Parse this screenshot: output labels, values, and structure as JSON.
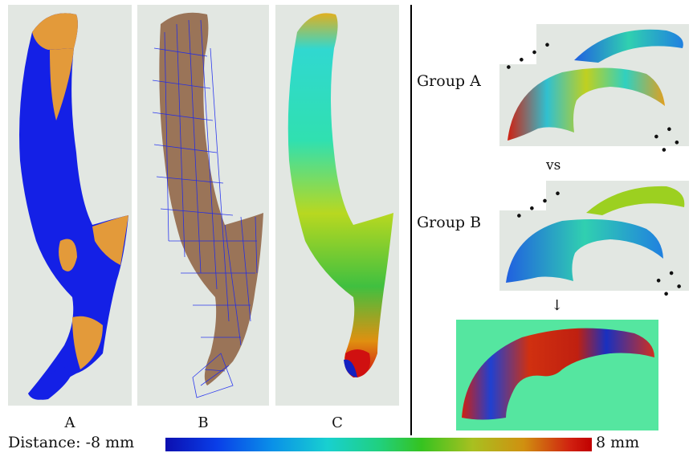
{
  "captions": {
    "a": "A",
    "b": "B",
    "c": "C"
  },
  "groups": {
    "a": "Group A",
    "vs": "vs",
    "b": "Group B",
    "arrow": "↓"
  },
  "legend": {
    "prefix": "Distance: -8 mm",
    "suffix": "8 mm"
  },
  "colors": {
    "blue": "#1420e6",
    "orange": "#e39a3a",
    "panel_bg": "#e2e7e2",
    "result_bg": "#55e6a0"
  }
}
